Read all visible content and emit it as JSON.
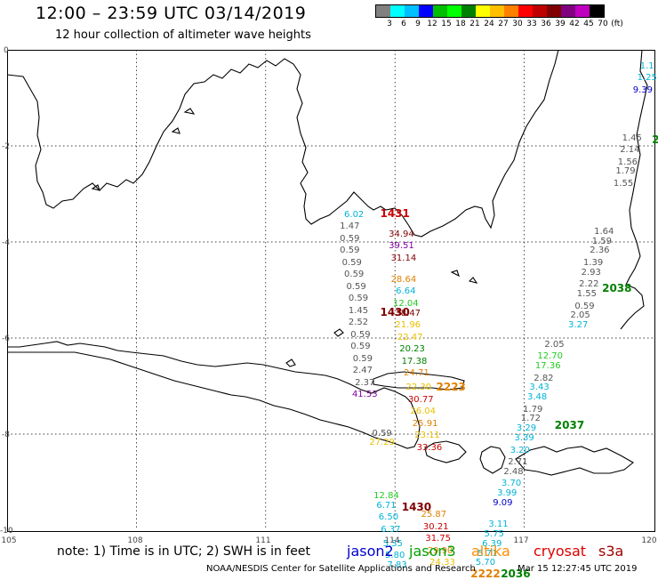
{
  "header": {
    "title": "12:00 – 23:59 UTC 03/14/2019",
    "subtitle": "12 hour collection of altimeter wave heights"
  },
  "legend": {
    "colors": [
      "#808080",
      "#00ffff",
      "#00bfff",
      "#0000ff",
      "#00bf00",
      "#00ff00",
      "#008000",
      "#ffff00",
      "#ffbf00",
      "#ff8000",
      "#ff0000",
      "#bf0000",
      "#800000",
      "#800080",
      "#bf00bf",
      "#000000"
    ],
    "labels": [
      "3",
      "6",
      "9",
      "12",
      "15",
      "18",
      "21",
      "24",
      "27",
      "30",
      "33",
      "36",
      "39",
      "42",
      "45",
      "70",
      "(ft)"
    ]
  },
  "axes": {
    "y": [
      "0",
      "-2",
      "-4",
      "-6",
      "-8",
      "-10"
    ],
    "x": [
      "105",
      "108",
      "111",
      "114",
      "117",
      "120"
    ]
  },
  "wave_colors": {
    "gray": "#555555",
    "cyan": "#00b4d8",
    "green": "#22cc22",
    "yellow": "#e8c000",
    "orange": "#e08000",
    "red": "#cc0000",
    "darkred": "#800000",
    "purple": "#8000a0",
    "blue": "#0000cc",
    "darkgreen": "#008000"
  },
  "waves": [
    {
      "t": "1.1",
      "c": "cyan",
      "lon": 119.85,
      "lat": -0.25
    },
    {
      "t": "1.25",
      "c": "cyan",
      "lon": 119.85,
      "lat": -0.5
    },
    {
      "t": "9.39",
      "c": "blue",
      "lon": 119.75,
      "lat": -0.75
    },
    {
      "t": "1.45",
      "c": "gray",
      "lon": 119.5,
      "lat": -1.75
    },
    {
      "t": "2.14",
      "c": "gray",
      "lon": 119.45,
      "lat": -2.0
    },
    {
      "t": "1.56",
      "c": "gray",
      "lon": 119.4,
      "lat": -2.25
    },
    {
      "t": "1.79",
      "c": "gray",
      "lon": 119.35,
      "lat": -2.45
    },
    {
      "t": "1.55",
      "c": "gray",
      "lon": 119.3,
      "lat": -2.7
    },
    {
      "t": "1.64",
      "c": "gray",
      "lon": 118.85,
      "lat": -3.7
    },
    {
      "t": "1.59",
      "c": "gray",
      "lon": 118.8,
      "lat": -3.9
    },
    {
      "t": "2.36",
      "c": "gray",
      "lon": 118.75,
      "lat": -4.1
    },
    {
      "t": "1.39",
      "c": "gray",
      "lon": 118.6,
      "lat": -4.35
    },
    {
      "t": "2.93",
      "c": "gray",
      "lon": 118.55,
      "lat": -4.55
    },
    {
      "t": "2.22",
      "c": "gray",
      "lon": 118.5,
      "lat": -4.8
    },
    {
      "t": "1.55",
      "c": "gray",
      "lon": 118.45,
      "lat": -5.0
    },
    {
      "t": "0.59",
      "c": "gray",
      "lon": 118.4,
      "lat": -5.25
    },
    {
      "t": "2.05",
      "c": "gray",
      "lon": 118.3,
      "lat": -5.45
    },
    {
      "t": "3.27",
      "c": "cyan",
      "lon": 118.25,
      "lat": -5.65
    },
    {
      "t": "2.05",
      "c": "gray",
      "lon": 117.7,
      "lat": -6.05
    },
    {
      "t": "12.70",
      "c": "green",
      "lon": 117.6,
      "lat": -6.3
    },
    {
      "t": "17.36",
      "c": "green",
      "lon": 117.55,
      "lat": -6.5
    },
    {
      "t": "2.82",
      "c": "gray",
      "lon": 117.45,
      "lat": -6.75
    },
    {
      "t": "3.43",
      "c": "cyan",
      "lon": 117.35,
      "lat": -6.95
    },
    {
      "t": "3.48",
      "c": "cyan",
      "lon": 117.3,
      "lat": -7.15
    },
    {
      "t": "1.79",
      "c": "gray",
      "lon": 117.2,
      "lat": -7.4
    },
    {
      "t": "1.72",
      "c": "gray",
      "lon": 117.15,
      "lat": -7.6
    },
    {
      "t": "3.29",
      "c": "cyan",
      "lon": 117.05,
      "lat": -7.8
    },
    {
      "t": "3.39",
      "c": "cyan",
      "lon": 117.0,
      "lat": -8.0
    },
    {
      "t": "3.20",
      "c": "cyan",
      "lon": 116.9,
      "lat": -8.25
    },
    {
      "t": "2.71",
      "c": "gray",
      "lon": 116.85,
      "lat": -8.5
    },
    {
      "t": "2.48",
      "c": "gray",
      "lon": 116.75,
      "lat": -8.7
    },
    {
      "t": "3.70",
      "c": "cyan",
      "lon": 116.7,
      "lat": -8.95
    },
    {
      "t": "3.99",
      "c": "cyan",
      "lon": 116.6,
      "lat": -9.15
    },
    {
      "t": "9.09",
      "c": "blue",
      "lon": 116.5,
      "lat": -9.35
    },
    {
      "t": "3.11",
      "c": "cyan",
      "lon": 116.4,
      "lat": -9.8
    },
    {
      "t": "5.75",
      "c": "cyan",
      "lon": 116.3,
      "lat": -10.0
    },
    {
      "t": "6.39",
      "c": "cyan",
      "lon": 116.25,
      "lat": -10.2
    },
    {
      "t": "5.71",
      "c": "cyan",
      "lon": 116.15,
      "lat": -10.4
    },
    {
      "t": "5.70",
      "c": "cyan",
      "lon": 116.1,
      "lat": -10.6
    },
    {
      "t": "6.02",
      "c": "cyan",
      "lon": 113.05,
      "lat": -3.35
    },
    {
      "t": "1.47",
      "c": "gray",
      "lon": 112.95,
      "lat": -3.6
    },
    {
      "t": "0.59",
      "c": "gray",
      "lon": 112.95,
      "lat": -3.85
    },
    {
      "t": "0.59",
      "c": "gray",
      "lon": 112.95,
      "lat": -4.1
    },
    {
      "t": "0.59",
      "c": "gray",
      "lon": 113.0,
      "lat": -4.35
    },
    {
      "t": "0.59",
      "c": "gray",
      "lon": 113.05,
      "lat": -4.6
    },
    {
      "t": "0.59",
      "c": "gray",
      "lon": 113.1,
      "lat": -4.85
    },
    {
      "t": "0.59",
      "c": "gray",
      "lon": 113.15,
      "lat": -5.1
    },
    {
      "t": "1.45",
      "c": "gray",
      "lon": 113.15,
      "lat": -5.35
    },
    {
      "t": "2.52",
      "c": "gray",
      "lon": 113.15,
      "lat": -5.6
    },
    {
      "t": "0.59",
      "c": "gray",
      "lon": 113.2,
      "lat": -5.85
    },
    {
      "t": "0.59",
      "c": "gray",
      "lon": 113.2,
      "lat": -6.1
    },
    {
      "t": "0.59",
      "c": "gray",
      "lon": 113.25,
      "lat": -6.35
    },
    {
      "t": "2.47",
      "c": "gray",
      "lon": 113.25,
      "lat": -6.6
    },
    {
      "t": "2.37",
      "c": "gray",
      "lon": 113.3,
      "lat": -6.85
    },
    {
      "t": "41.53",
      "c": "purple",
      "lon": 113.3,
      "lat": -7.1
    },
    {
      "t": "0.59",
      "c": "gray",
      "lon": 113.7,
      "lat": -7.9
    },
    {
      "t": "27.29",
      "c": "yellow",
      "lon": 113.7,
      "lat": -8.1
    },
    {
      "t": "34.94",
      "c": "darkred",
      "lon": 114.15,
      "lat": -3.75
    },
    {
      "t": "39.51",
      "c": "purple",
      "lon": 114.15,
      "lat": -4.0
    },
    {
      "t": "31.14",
      "c": "darkred",
      "lon": 114.2,
      "lat": -4.25
    },
    {
      "t": "28.64",
      "c": "orange",
      "lon": 114.2,
      "lat": -4.7
    },
    {
      "t": "6.64",
      "c": "cyan",
      "lon": 114.25,
      "lat": -4.95
    },
    {
      "t": "12.04",
      "c": "green",
      "lon": 114.25,
      "lat": -5.2
    },
    {
      "t": "38.47",
      "c": "darkred",
      "lon": 114.3,
      "lat": -5.4
    },
    {
      "t": "21.96",
      "c": "yellow",
      "lon": 114.3,
      "lat": -5.65
    },
    {
      "t": "22.47",
      "c": "yellow",
      "lon": 114.35,
      "lat": -5.9
    },
    {
      "t": "20.23",
      "c": "darkgreen",
      "lon": 114.4,
      "lat": -6.15
    },
    {
      "t": "17.38",
      "c": "darkgreen",
      "lon": 114.45,
      "lat": -6.4
    },
    {
      "t": "24.71",
      "c": "orange",
      "lon": 114.5,
      "lat": -6.65
    },
    {
      "t": "22.30",
      "c": "yellow",
      "lon": 114.55,
      "lat": -6.95
    },
    {
      "t": "30.77",
      "c": "red",
      "lon": 114.6,
      "lat": -7.2
    },
    {
      "t": "26.04",
      "c": "yellow",
      "lon": 114.65,
      "lat": -7.45
    },
    {
      "t": "25.91",
      "c": "orange",
      "lon": 114.7,
      "lat": -7.7
    },
    {
      "t": "23.11",
      "c": "yellow",
      "lon": 114.75,
      "lat": -7.95
    },
    {
      "t": "33.36",
      "c": "red",
      "lon": 114.8,
      "lat": -8.2
    },
    {
      "t": "12.84",
      "c": "green",
      "lon": 113.8,
      "lat": -9.2
    },
    {
      "t": "6.71",
      "c": "cyan",
      "lon": 113.8,
      "lat": -9.4
    },
    {
      "t": "6.50",
      "c": "cyan",
      "lon": 113.85,
      "lat": -9.65
    },
    {
      "t": "6.37",
      "c": "cyan",
      "lon": 113.9,
      "lat": -9.9
    },
    {
      "t": "5.35",
      "c": "cyan",
      "lon": 113.95,
      "lat": -10.2
    },
    {
      "t": "5.80",
      "c": "cyan",
      "lon": 114.0,
      "lat": -10.45
    },
    {
      "t": "7.83",
      "c": "cyan",
      "lon": 114.05,
      "lat": -10.65
    },
    {
      "t": "25.87",
      "c": "orange",
      "lon": 114.9,
      "lat": -9.6
    },
    {
      "t": "30.21",
      "c": "red",
      "lon": 114.95,
      "lat": -9.85
    },
    {
      "t": "31.75",
      "c": "red",
      "lon": 115.0,
      "lat": -10.1
    },
    {
      "t": "29.90",
      "c": "orange",
      "lon": 115.05,
      "lat": -10.35
    },
    {
      "t": "24.33",
      "c": "yellow",
      "lon": 115.1,
      "lat": -10.6
    }
  ],
  "pass_times": [
    {
      "t": "1431",
      "c": "red",
      "lon": 114.0,
      "lat": -3.3
    },
    {
      "t": "1430",
      "c": "darkred",
      "lon": 114.0,
      "lat": -5.35
    },
    {
      "t": "2223",
      "c": "orange",
      "lon": 115.3,
      "lat": -6.9
    },
    {
      "t": "1430",
      "c": "darkred",
      "lon": 114.5,
      "lat": -9.4
    },
    {
      "t": "2222",
      "c": "orange",
      "lon": 116.1,
      "lat": -10.8
    },
    {
      "t": "2036",
      "c": "darkgreen",
      "lon": 116.8,
      "lat": -10.8
    },
    {
      "t": "2037",
      "c": "darkgreen",
      "lon": 118.05,
      "lat": -7.7
    },
    {
      "t": "2038",
      "c": "darkgreen",
      "lon": 119.15,
      "lat": -4.85
    },
    {
      "t": "2",
      "c": "darkgreen",
      "lon": 120.05,
      "lat": -1.75
    }
  ],
  "footer": {
    "note": "note: 1) Time is in UTC; 2) SWH is in feet",
    "satellites": [
      {
        "name": "jason2",
        "color": "#0000cc"
      },
      {
        "name": "jason3",
        "color": "#00a000"
      },
      {
        "name": "altika",
        "color": "#ff8c00"
      },
      {
        "name": "cryosat",
        "color": "#dd0000"
      },
      {
        "name": "s3a",
        "color": "#a00000"
      }
    ],
    "credit": "NOAA/NESDIS Center for Satellite Applications and Research",
    "timestamp": "Mar 15 12:27:45 UTC 2019"
  }
}
